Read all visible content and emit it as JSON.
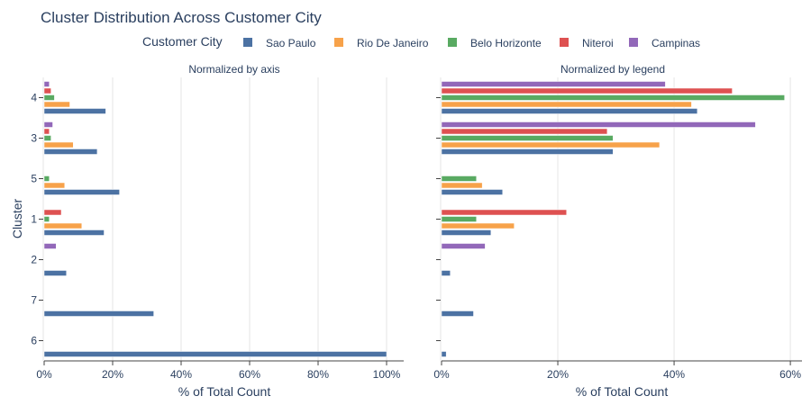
{
  "title": "Cluster Distribution Across Customer City",
  "legend": {
    "title": "Customer City",
    "items": [
      {
        "name": "Sao Paulo",
        "color": "#4c72a3"
      },
      {
        "name": "Rio De Janeiro",
        "color": "#f7a24a"
      },
      {
        "name": "Belo Horizonte",
        "color": "#59aa62"
      },
      {
        "name": "Niteroi",
        "color": "#de5151"
      },
      {
        "name": "Campinas",
        "color": "#9268b9"
      }
    ]
  },
  "chart_data": [
    {
      "type": "bar",
      "orientation": "horizontal",
      "subtitle": "Normalized by axis",
      "xlabel": "% of Total Count",
      "ylabel": "Cluster",
      "xlim": [
        0,
        105
      ],
      "xticks": [
        0,
        20,
        40,
        60,
        80,
        100
      ],
      "xtick_labels": [
        "0%",
        "20%",
        "40%",
        "60%",
        "80%",
        "100%"
      ],
      "categories": [
        "4",
        "3",
        "5",
        "1",
        "2",
        "7",
        "6"
      ],
      "series": [
        {
          "name": "Sao Paulo",
          "values": [
            18,
            15.5,
            22,
            17.5,
            6.5,
            32,
            100
          ]
        },
        {
          "name": "Rio De Janeiro",
          "values": [
            7.5,
            8.5,
            6,
            11,
            null,
            null,
            null
          ]
        },
        {
          "name": "Belo Horizonte",
          "values": [
            3,
            2,
            1.5,
            1.5,
            null,
            null,
            null
          ]
        },
        {
          "name": "Niteroi",
          "values": [
            2,
            1.5,
            null,
            5,
            null,
            null,
            null
          ]
        },
        {
          "name": "Campinas",
          "values": [
            1.5,
            2.5,
            null,
            null,
            3.5,
            null,
            null
          ]
        }
      ]
    },
    {
      "type": "bar",
      "orientation": "horizontal",
      "subtitle": "Normalized by legend",
      "xlabel": "% of Total Count",
      "xlim": [
        0,
        62
      ],
      "xticks": [
        0,
        20,
        40,
        60
      ],
      "xtick_labels": [
        "0%",
        "20%",
        "40%",
        "60%"
      ],
      "categories": [
        "4",
        "3",
        "5",
        "1",
        "2",
        "7",
        "6"
      ],
      "series": [
        {
          "name": "Sao Paulo",
          "values": [
            44,
            29.5,
            10.5,
            8.5,
            1.5,
            5.5,
            0.8
          ]
        },
        {
          "name": "Rio De Janeiro",
          "values": [
            43,
            37.5,
            7,
            12.5,
            null,
            null,
            null
          ]
        },
        {
          "name": "Belo Horizonte",
          "values": [
            59,
            29.5,
            6,
            6,
            null,
            null,
            null
          ]
        },
        {
          "name": "Niteroi",
          "values": [
            50,
            28.5,
            null,
            21.5,
            null,
            null,
            null
          ]
        },
        {
          "name": "Campinas",
          "values": [
            38.5,
            54,
            null,
            null,
            7.5,
            null,
            null
          ]
        }
      ]
    }
  ]
}
